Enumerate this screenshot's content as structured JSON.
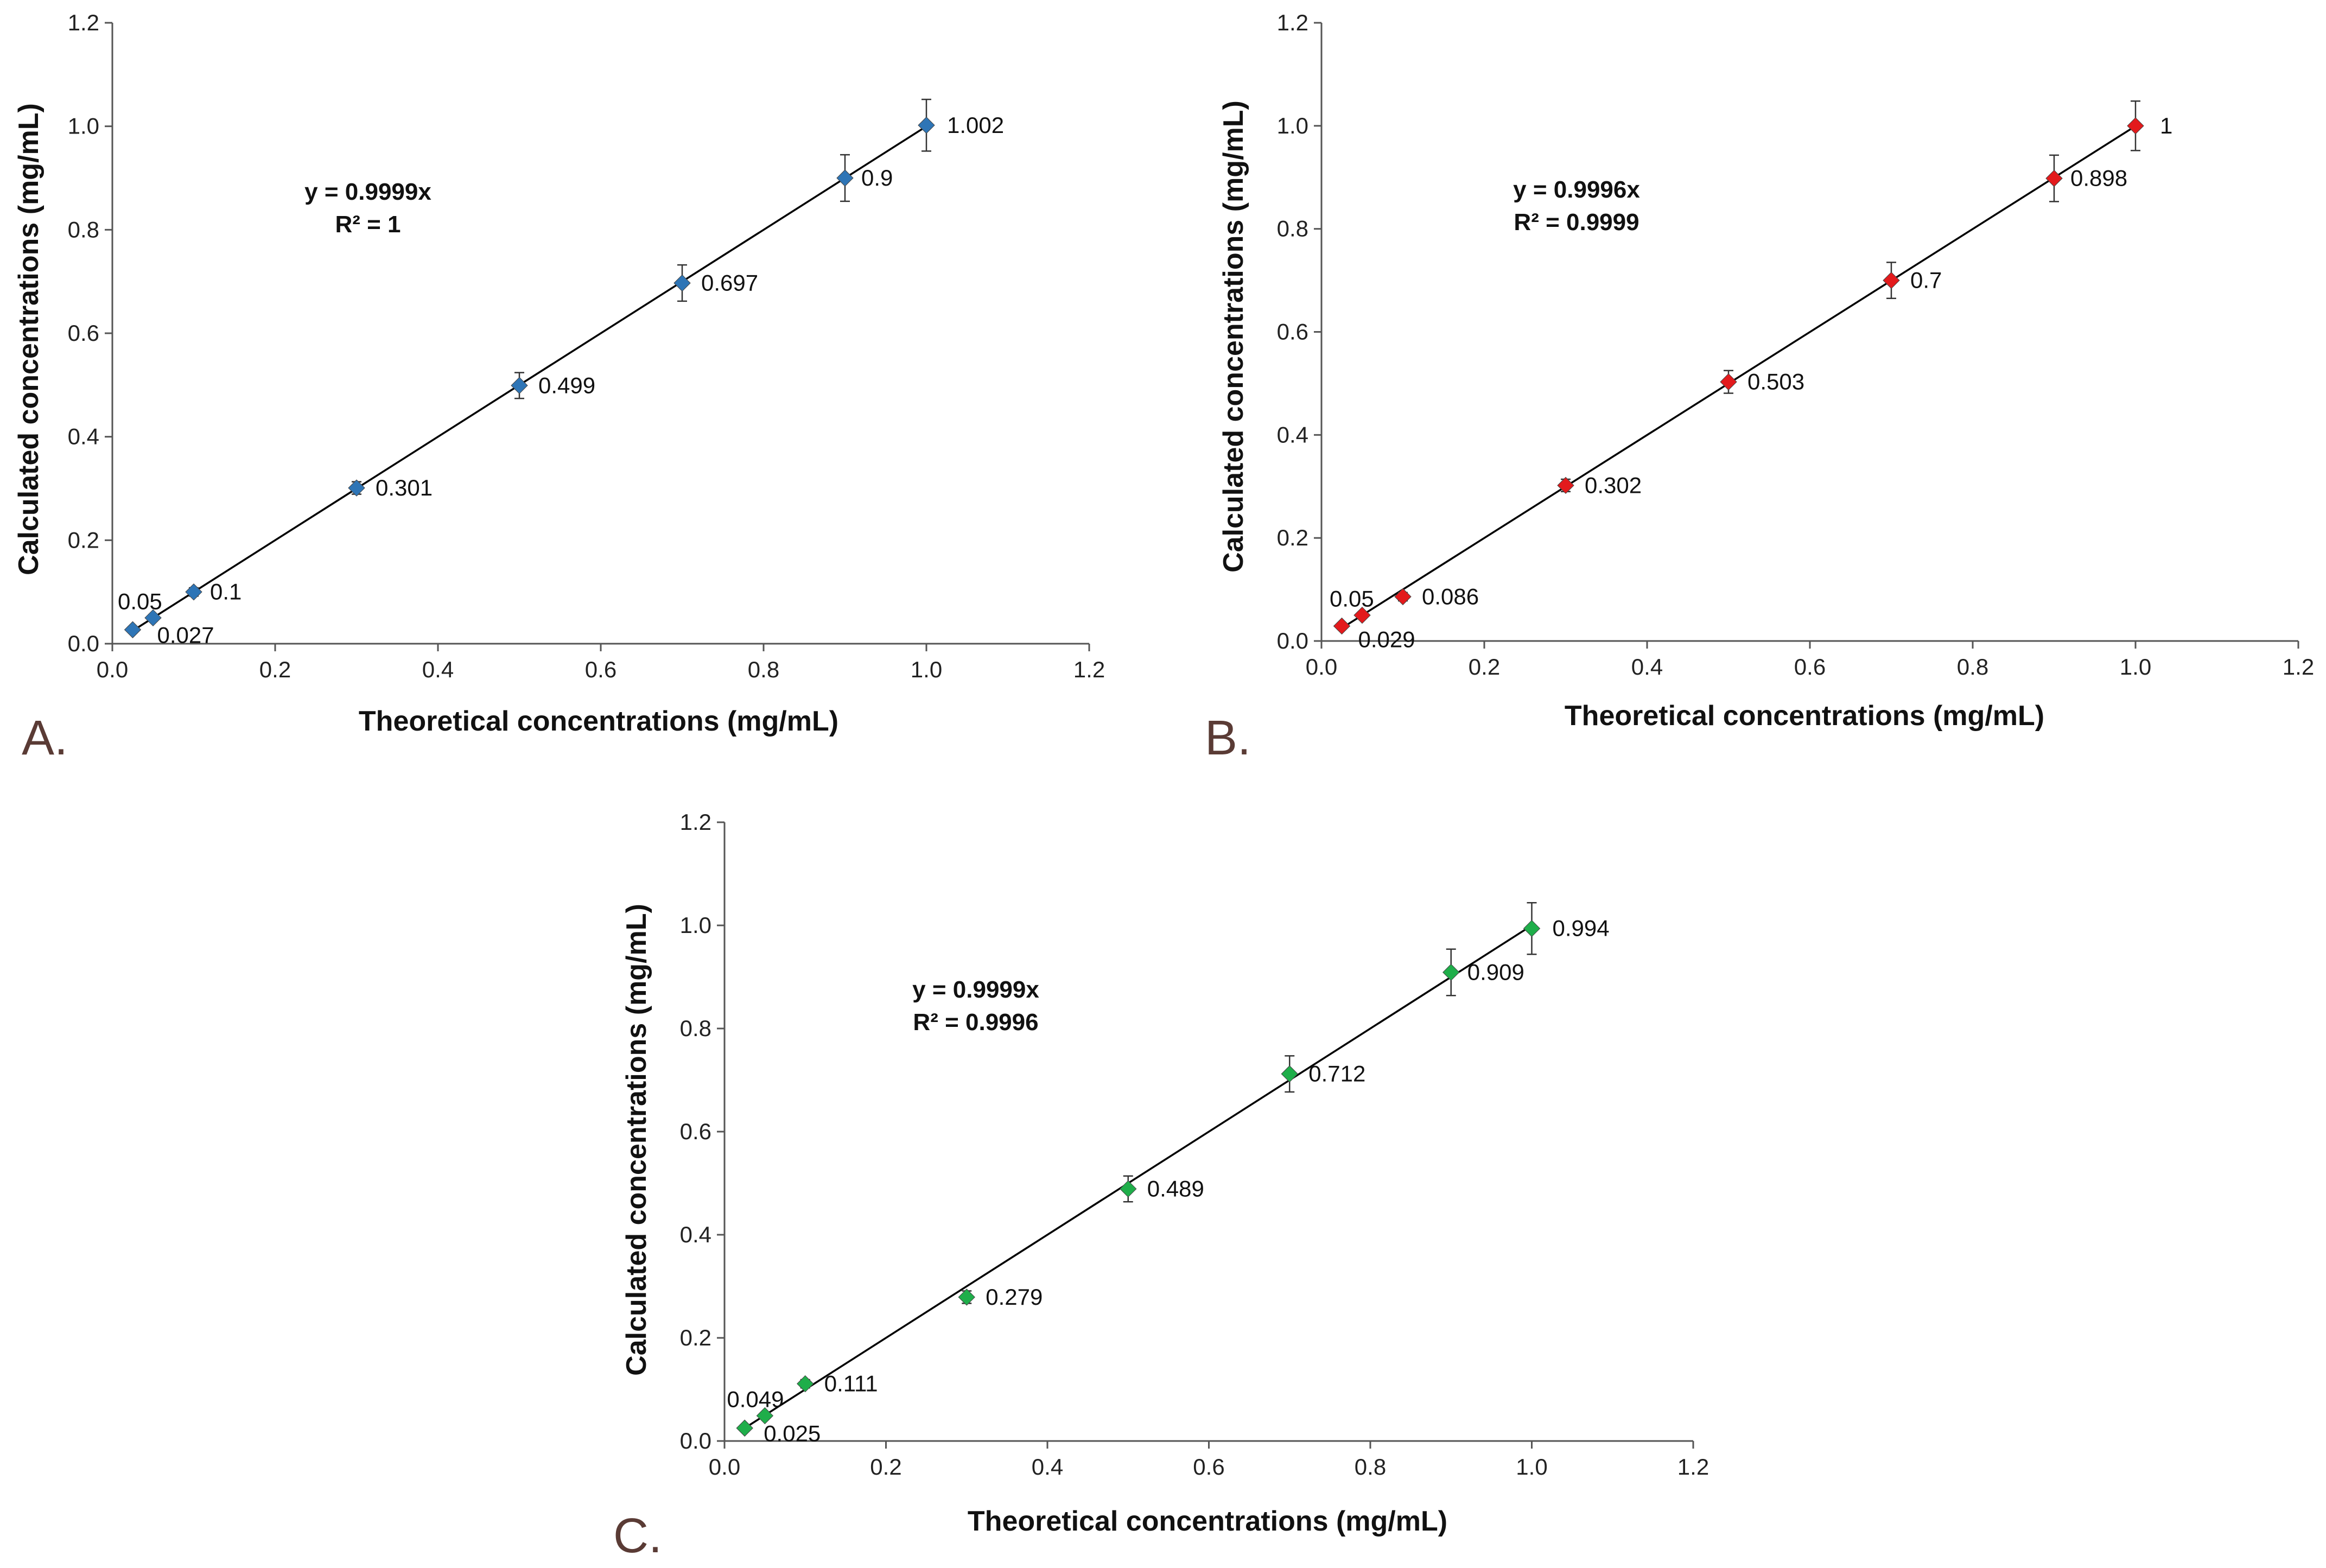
{
  "chart_data": [
    {
      "panel": "A.",
      "type": "scatter",
      "color": "#2e75b6",
      "xlabel": "Theoretical concentrations (mg/mL)",
      "ylabel": "Calculated concentrations (mg/mL)",
      "xlim": [
        0,
        1.2
      ],
      "ylim": [
        0,
        1.2
      ],
      "xticks": [
        "0.0",
        "0.2",
        "0.4",
        "0.6",
        "0.8",
        "1.0",
        "1.2"
      ],
      "yticks": [
        "0.0",
        "0.2",
        "0.4",
        "0.6",
        "0.8",
        "1.0",
        "1.2"
      ],
      "equation": "y = 0.9999x",
      "r2": "R² = 1",
      "slope": 0.9999,
      "x": [
        0.025,
        0.05,
        0.1,
        0.3,
        0.5,
        0.7,
        0.9,
        1.0
      ],
      "y": [
        0.027,
        0.05,
        0.1,
        0.301,
        0.499,
        0.697,
        0.9,
        1.002
      ],
      "err": [
        0.006,
        0.006,
        0.008,
        0.012,
        0.025,
        0.035,
        0.045,
        0.05
      ],
      "labels": [
        "0.027",
        "0.05",
        "0.1",
        "0.301",
        "0.499",
        "0.697",
        "0.9",
        "1.002"
      ]
    },
    {
      "panel": "B.",
      "type": "scatter",
      "color": "#e31a1c",
      "xlabel": "Theoretical concentrations (mg/mL)",
      "ylabel": "Calculated concentrations (mg/mL)",
      "xlim": [
        0,
        1.2
      ],
      "ylim": [
        0,
        1.2
      ],
      "xticks": [
        "0.0",
        "0.2",
        "0.4",
        "0.6",
        "0.8",
        "1.0",
        "1.2"
      ],
      "yticks": [
        "0.0",
        "0.2",
        "0.4",
        "0.6",
        "0.8",
        "1.0",
        "1.2"
      ],
      "equation": "y = 0.9996x",
      "r2": "R² = 0.9999",
      "slope": 0.9996,
      "x": [
        0.025,
        0.05,
        0.1,
        0.3,
        0.5,
        0.7,
        0.9,
        1.0
      ],
      "y": [
        0.029,
        0.05,
        0.086,
        0.302,
        0.503,
        0.7,
        0.898,
        1.0
      ],
      "err": [
        0.006,
        0.006,
        0.008,
        0.012,
        0.022,
        0.035,
        0.045,
        0.048
      ],
      "labels": [
        "0.029",
        "0.05",
        "0.086",
        "0.302",
        "0.503",
        "0.7",
        "0.898",
        "1"
      ]
    },
    {
      "panel": "C.",
      "type": "scatter",
      "color": "#1fae4a",
      "xlabel": "Theoretical concentrations (mg/mL)",
      "ylabel": "Calculated concentrations (mg/mL)",
      "xlim": [
        0,
        1.2
      ],
      "ylim": [
        0,
        1.2
      ],
      "xticks": [
        "0.0",
        "0.2",
        "0.4",
        "0.6",
        "0.8",
        "1.0",
        "1.2"
      ],
      "yticks": [
        "0.0",
        "0.2",
        "0.4",
        "0.6",
        "0.8",
        "1.0",
        "1.2"
      ],
      "equation": "y = 0.9999x",
      "r2": "R² = 0.9996",
      "slope": 0.9999,
      "x": [
        0.025,
        0.05,
        0.1,
        0.3,
        0.5,
        0.7,
        0.9,
        1.0
      ],
      "y": [
        0.025,
        0.049,
        0.111,
        0.279,
        0.489,
        0.712,
        0.909,
        0.994
      ],
      "err": [
        0.006,
        0.006,
        0.008,
        0.012,
        0.025,
        0.035,
        0.045,
        0.05
      ],
      "labels": [
        "0.025",
        "0.049",
        "0.111",
        "0.279",
        "0.489",
        "0.712",
        "0.909",
        "0.994"
      ]
    }
  ]
}
